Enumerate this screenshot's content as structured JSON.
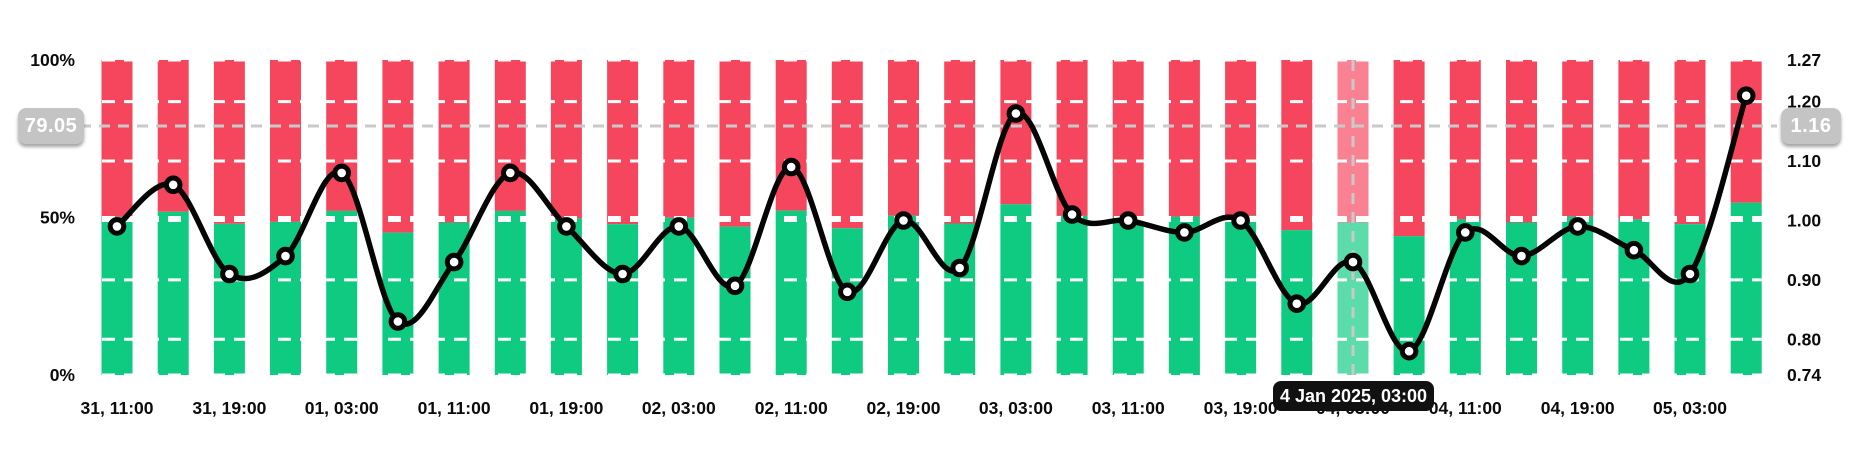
{
  "chart": {
    "left_axis": {
      "crosshair_badge": "79.05",
      "ticks": [
        {
          "label": "100%",
          "pct": 100
        },
        {
          "label": "50%",
          "pct": 50
        },
        {
          "label": "0%",
          "pct": 0
        }
      ]
    },
    "right_axis": {
      "crosshair_badge": "1.16",
      "ticks": [
        {
          "label": "1.27",
          "value": 1.27
        },
        {
          "label": "1.20",
          "value": 1.2
        },
        {
          "label": "1.10",
          "value": 1.1
        },
        {
          "label": "1.00",
          "value": 1.0
        },
        {
          "label": "0.90",
          "value": 0.9
        },
        {
          "label": "0.80",
          "value": 0.8
        },
        {
          "label": "0.74",
          "value": 0.74
        }
      ]
    },
    "tooltip": {
      "text": "4 Jan 2025, 03:00"
    }
  },
  "chart_data": {
    "type": "stacked-bar+line",
    "x_labels": [
      "31, 11:00",
      "",
      "31, 19:00",
      "",
      "01, 03:00",
      "",
      "01, 11:00",
      "",
      "01, 19:00",
      "",
      "02, 03:00",
      "",
      "02, 11:00",
      "",
      "02, 19:00",
      "",
      "03, 03:00",
      "",
      "03, 11:00",
      "",
      "03, 19:00",
      "",
      "04, 03:00",
      "",
      "04, 11:00",
      "",
      "04, 19:00",
      "",
      "05, 03:00",
      ""
    ],
    "series": [
      {
        "name": "green-bar-pct",
        "type": "bar",
        "color": "#0ECB81",
        "axis": "left",
        "values": [
          50.2,
          51.8,
          48.0,
          48.6,
          52.1,
          45.2,
          48.4,
          52.1,
          49.7,
          47.9,
          49.9,
          47.1,
          52.2,
          46.6,
          50.6,
          48.1,
          54.2,
          50.5,
          50.0,
          50.3,
          50.6,
          46.0,
          48.4,
          44.1,
          49.4,
          48.4,
          50.3,
          49.4,
          47.9,
          54.7
        ]
      },
      {
        "name": "red-bar-pct",
        "type": "bar",
        "color": "#F6465D",
        "axis": "left",
        "values": [
          49.8,
          48.2,
          52.0,
          51.4,
          47.9,
          54.8,
          51.6,
          47.9,
          50.3,
          52.1,
          50.1,
          52.9,
          47.8,
          53.4,
          49.4,
          51.9,
          45.8,
          49.5,
          50.0,
          49.7,
          49.4,
          54.0,
          51.6,
          55.9,
          50.6,
          51.6,
          49.7,
          50.6,
          52.1,
          45.3
        ]
      },
      {
        "name": "ratio-line",
        "type": "line",
        "color": "#050505",
        "axis": "right",
        "values": [
          0.99,
          1.06,
          0.91,
          0.94,
          1.08,
          0.83,
          0.93,
          1.08,
          0.99,
          0.91,
          0.99,
          0.89,
          1.09,
          0.88,
          1.0,
          0.92,
          1.18,
          1.01,
          1.0,
          0.98,
          1.0,
          0.86,
          0.93,
          0.78,
          0.98,
          0.94,
          0.99,
          0.95,
          0.91,
          1.21
        ]
      }
    ],
    "left_ylim": [
      0,
      100
    ],
    "right_ylim": [
      0.74,
      1.27
    ],
    "right_axis_gridlines": [
      1.2,
      1.1,
      1.0,
      0.9,
      0.8
    ],
    "grid": true,
    "legend_position": "none",
    "highlighted_index": 22,
    "crosshair": {
      "x_index": 22,
      "left_value": 79.05,
      "right_value": 1.16
    }
  },
  "colors": {
    "green_bar": "#0ECB81",
    "red_bar": "#F6465D",
    "line": "#050505",
    "gridline": "#FFFFFF",
    "crosshair": "#C9C9C9",
    "badge_bg": "#C4C4C4",
    "badge_text": "#FFFFFF",
    "tooltip_bg": "#111111",
    "tooltip_text": "#FFFFFF",
    "axis_text": "#0B0B0B"
  }
}
